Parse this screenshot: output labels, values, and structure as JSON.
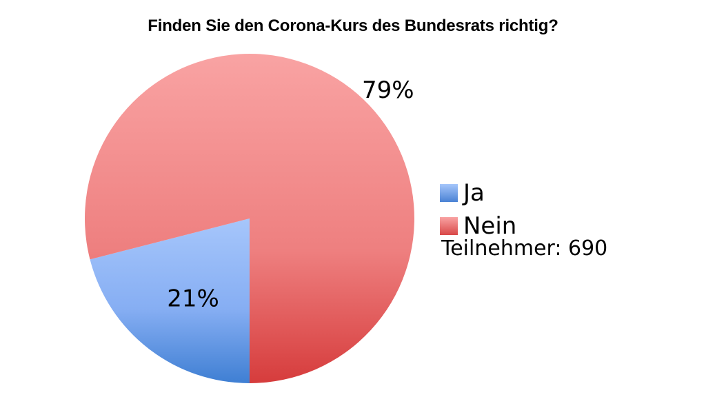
{
  "chart_data": {
    "type": "pie",
    "title": "Finden Sie den Corona-Kurs des Bundesrats richtig?",
    "slices": [
      {
        "label": "Ja",
        "value": 21,
        "value_label": "21%",
        "color": "#8fb4f5",
        "color_dark": "#4a82d4"
      },
      {
        "label": "Nein",
        "value": 79,
        "value_label": "79%",
        "color": "#f7a0a0",
        "color_dark": "#d94848"
      }
    ],
    "legend_placement": "right",
    "note_label": "Teilnehmer:",
    "note_value": "690"
  }
}
